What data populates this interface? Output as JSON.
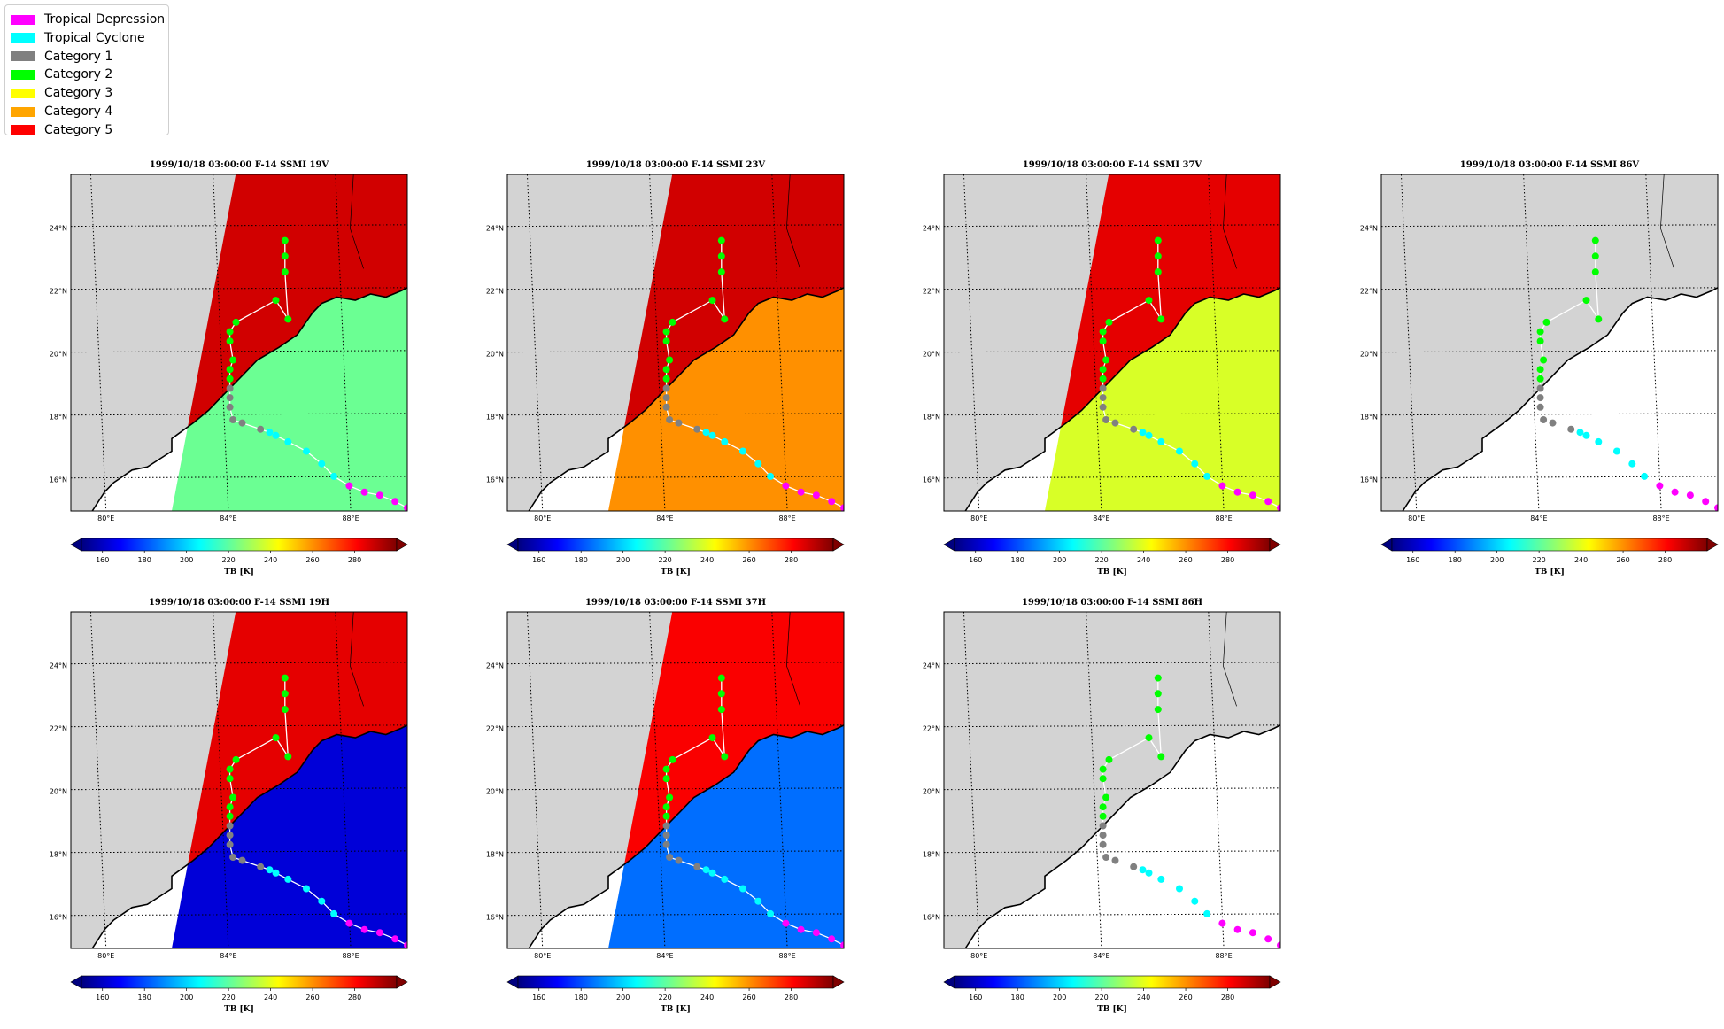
{
  "legend": {
    "items": [
      {
        "label": "Tropical Depression",
        "color": "#ff00ff"
      },
      {
        "label": "Tropical Cyclone",
        "color": "#00ffff"
      },
      {
        "label": "Category 1",
        "color": "#808080"
      },
      {
        "label": "Category 2",
        "color": "#00ff00"
      },
      {
        "label": "Category 3",
        "color": "#ffff00"
      },
      {
        "label": "Category 4",
        "color": "#ffa500"
      },
      {
        "label": "Category 5",
        "color": "#ff0000"
      }
    ]
  },
  "colors": {
    "land": "#d3d3d3",
    "ocean_blank": "#ffffff",
    "track_line": "#ffffff",
    "colormap": [
      "#00007f",
      "#0000ff",
      "#007fff",
      "#00ffff",
      "#7fff7f",
      "#ffff00",
      "#ff7f00",
      "#ff0000",
      "#7f0000"
    ]
  },
  "chart_data": [
    {
      "type": "heatmap",
      "title": "1999/10/18 03:00:00  F-14 SSMI 19V",
      "xticks": [
        "80°E",
        "84°E",
        "88°E"
      ],
      "yticks": [
        "16°N",
        "18°N",
        "20°N",
        "22°N",
        "24°N"
      ],
      "colorbar_label": "TB [K]",
      "colorbar_ticks": [
        "160",
        "180",
        "200",
        "220",
        "240",
        "260",
        "280"
      ],
      "colorbar_range": [
        150,
        300
      ],
      "land_tb": 288,
      "ocean_tb": 222,
      "swath": true
    },
    {
      "type": "heatmap",
      "title": "1999/10/18 03:00:00  F-14 SSMI 23V",
      "xticks": [
        "80°E",
        "84°E",
        "88°E"
      ],
      "yticks": [
        "16°N",
        "18°N",
        "20°N",
        "22°N",
        "24°N"
      ],
      "colorbar_label": "TB [K]",
      "colorbar_ticks": [
        "160",
        "180",
        "200",
        "220",
        "240",
        "260",
        "280"
      ],
      "colorbar_range": [
        150,
        300
      ],
      "land_tb": 288,
      "ocean_tb": 260,
      "swath": true
    },
    {
      "type": "heatmap",
      "title": "1999/10/18 03:00:00  F-14 SSMI 37V",
      "xticks": [
        "80°E",
        "84°E",
        "88°E"
      ],
      "yticks": [
        "16°N",
        "18°N",
        "20°N",
        "22°N",
        "24°N"
      ],
      "colorbar_label": "TB [K]",
      "colorbar_ticks": [
        "160",
        "180",
        "200",
        "220",
        "240",
        "260",
        "280"
      ],
      "colorbar_range": [
        150,
        300
      ],
      "land_tb": 285,
      "ocean_tb": 238,
      "swath": true
    },
    {
      "type": "heatmap",
      "title": "1999/10/18 03:00:00  F-14 SSMI 86V",
      "xticks": [
        "80°E",
        "84°E",
        "88°E"
      ],
      "yticks": [
        "16°N",
        "18°N",
        "20°N",
        "22°N",
        "24°N"
      ],
      "colorbar_label": "TB [K]",
      "colorbar_ticks": [
        "160",
        "180",
        "200",
        "220",
        "240",
        "260",
        "280"
      ],
      "colorbar_range": [
        150,
        300
      ],
      "swath": false
    },
    {
      "type": "heatmap",
      "title": "1999/10/18 03:00:00  F-14 SSMI 19H",
      "xticks": [
        "80°E",
        "84°E",
        "88°E"
      ],
      "yticks": [
        "16°N",
        "18°N",
        "20°N",
        "22°N",
        "24°N"
      ],
      "colorbar_label": "TB [K]",
      "colorbar_ticks": [
        "160",
        "180",
        "200",
        "220",
        "240",
        "260",
        "280"
      ],
      "colorbar_range": [
        150,
        300
      ],
      "land_tb": 285,
      "ocean_tb": 163,
      "swath": true
    },
    {
      "type": "heatmap",
      "title": "1999/10/18 03:00:00  F-14 SSMI 37H",
      "xticks": [
        "80°E",
        "84°E",
        "88°E"
      ],
      "yticks": [
        "16°N",
        "18°N",
        "20°N",
        "22°N",
        "24°N"
      ],
      "colorbar_label": "TB [K]",
      "colorbar_ticks": [
        "160",
        "180",
        "200",
        "220",
        "240",
        "260",
        "280"
      ],
      "colorbar_range": [
        150,
        300
      ],
      "land_tb": 282,
      "ocean_tb": 185,
      "swath": true
    },
    {
      "type": "heatmap",
      "title": "1999/10/18 03:00:00  F-14 SSMI 86H",
      "xticks": [
        "80°E",
        "84°E",
        "88°E"
      ],
      "yticks": [
        "16°N",
        "18°N",
        "20°N",
        "22°N",
        "24°N"
      ],
      "colorbar_label": "TB [K]",
      "colorbar_ticks": [
        "160",
        "180",
        "200",
        "220",
        "240",
        "260",
        "280"
      ],
      "colorbar_range": [
        150,
        300
      ],
      "swath": false
    }
  ],
  "track": {
    "points": [
      {
        "lon": 90.0,
        "lat": 15.1,
        "cat": "Tropical Depression"
      },
      {
        "lon": 89.6,
        "lat": 15.3,
        "cat": "Tropical Depression"
      },
      {
        "lon": 89.1,
        "lat": 15.5,
        "cat": "Tropical Depression"
      },
      {
        "lon": 88.6,
        "lat": 15.6,
        "cat": "Tropical Depression"
      },
      {
        "lon": 88.1,
        "lat": 15.8,
        "cat": "Tropical Depression"
      },
      {
        "lon": 87.6,
        "lat": 16.1,
        "cat": "Tropical Cyclone"
      },
      {
        "lon": 87.2,
        "lat": 16.5,
        "cat": "Tropical Cyclone"
      },
      {
        "lon": 86.7,
        "lat": 16.9,
        "cat": "Tropical Cyclone"
      },
      {
        "lon": 86.1,
        "lat": 17.2,
        "cat": "Tropical Cyclone"
      },
      {
        "lon": 85.7,
        "lat": 17.4,
        "cat": "Tropical Cyclone"
      },
      {
        "lon": 85.5,
        "lat": 17.5,
        "cat": "Tropical Cyclone"
      },
      {
        "lon": 85.2,
        "lat": 17.6,
        "cat": "Category 1"
      },
      {
        "lon": 84.6,
        "lat": 17.8,
        "cat": "Category 1"
      },
      {
        "lon": 84.3,
        "lat": 17.9,
        "cat": "Category 1"
      },
      {
        "lon": 84.2,
        "lat": 18.3,
        "cat": "Category 1"
      },
      {
        "lon": 84.2,
        "lat": 18.6,
        "cat": "Category 1"
      },
      {
        "lon": 84.2,
        "lat": 18.9,
        "cat": "Category 1"
      },
      {
        "lon": 84.2,
        "lat": 19.2,
        "cat": "Category 2"
      },
      {
        "lon": 84.2,
        "lat": 19.5,
        "cat": "Category 2"
      },
      {
        "lon": 84.3,
        "lat": 19.8,
        "cat": "Category 2"
      },
      {
        "lon": 84.2,
        "lat": 20.4,
        "cat": "Category 2"
      },
      {
        "lon": 84.2,
        "lat": 20.7,
        "cat": "Category 2"
      },
      {
        "lon": 84.4,
        "lat": 21.0,
        "cat": "Category 2"
      },
      {
        "lon": 85.7,
        "lat": 21.7,
        "cat": "Category 2"
      },
      {
        "lon": 86.1,
        "lat": 21.1,
        "cat": "Category 2"
      },
      {
        "lon": 86.0,
        "lat": 22.6,
        "cat": "Category 2"
      },
      {
        "lon": 86.0,
        "lat": 23.1,
        "cat": "Category 2"
      },
      {
        "lon": 86.0,
        "lat": 23.6,
        "cat": "Category 2"
      }
    ]
  }
}
